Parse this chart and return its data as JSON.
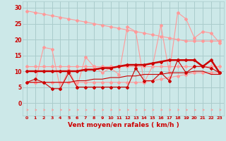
{
  "x": [
    0,
    1,
    2,
    3,
    4,
    5,
    6,
    7,
    8,
    9,
    10,
    11,
    12,
    13,
    14,
    15,
    16,
    17,
    18,
    19,
    20,
    21,
    22,
    23
  ],
  "line_upper_trend": [
    29.0,
    28.5,
    28.0,
    27.5,
    27.0,
    26.5,
    26.0,
    25.5,
    25.0,
    24.5,
    24.0,
    23.5,
    23.0,
    22.5,
    22.0,
    21.5,
    21.0,
    20.5,
    20.0,
    19.5,
    19.5,
    19.5,
    19.5,
    19.5
  ],
  "line_upper_flat": [
    11.5,
    11.5,
    11.5,
    11.5,
    11.5,
    11.5,
    11.5,
    11.5,
    11.5,
    11.5,
    11.5,
    11.5,
    11.5,
    11.5,
    11.5,
    11.5,
    11.5,
    11.5,
    11.5,
    11.5,
    11.5,
    11.5,
    11.5,
    11.5
  ],
  "line_zigzag_light": [
    6.5,
    6.5,
    17.5,
    17.0,
    4.5,
    10.5,
    5.0,
    14.5,
    11.5,
    9.5,
    11.0,
    9.0,
    24.0,
    22.5,
    6.5,
    11.5,
    24.5,
    9.5,
    28.5,
    26.5,
    20.5,
    22.5,
    22.0,
    19.0
  ],
  "line_lower_trend": [
    6.5,
    6.5,
    6.5,
    6.5,
    6.5,
    6.5,
    6.5,
    6.5,
    6.5,
    6.5,
    6.5,
    6.5,
    6.5,
    6.5,
    6.5,
    7.0,
    7.5,
    8.0,
    8.5,
    9.0,
    9.5,
    9.5,
    9.5,
    9.5
  ],
  "line_dark_upper": [
    10.0,
    10.0,
    10.0,
    10.0,
    10.0,
    10.0,
    10.0,
    10.5,
    10.5,
    11.0,
    11.0,
    11.5,
    12.0,
    12.0,
    12.0,
    12.5,
    13.0,
    13.5,
    13.5,
    13.5,
    13.5,
    11.5,
    13.5,
    9.5
  ],
  "line_dark_lower_trend": [
    6.5,
    6.5,
    6.5,
    6.5,
    6.5,
    6.5,
    7.0,
    7.0,
    7.5,
    7.5,
    8.0,
    8.0,
    8.5,
    8.5,
    9.0,
    9.0,
    9.0,
    9.5,
    9.5,
    9.5,
    10.0,
    10.0,
    9.0,
    9.0
  ],
  "line_dark_zigzag": [
    6.5,
    7.5,
    6.5,
    4.5,
    4.5,
    9.5,
    5.0,
    5.0,
    5.0,
    5.0,
    5.0,
    5.0,
    5.0,
    11.0,
    7.0,
    7.0,
    9.5,
    7.0,
    13.5,
    9.5,
    11.5,
    11.5,
    11.0,
    9.5
  ],
  "bg_color": "#cce8e8",
  "grid_color": "#aacccc",
  "line_dark_color": "#cc0000",
  "line_light_color": "#ff9999",
  "xlabel": "Vent moyen/en rafales ( km/h )",
  "xlabel_color": "#cc0000",
  "tick_color": "#cc0000",
  "yticks": [
    0,
    5,
    10,
    15,
    20,
    25,
    30
  ],
  "ylim": [
    -4,
    32
  ],
  "xlim": [
    -0.5,
    23.5
  ]
}
